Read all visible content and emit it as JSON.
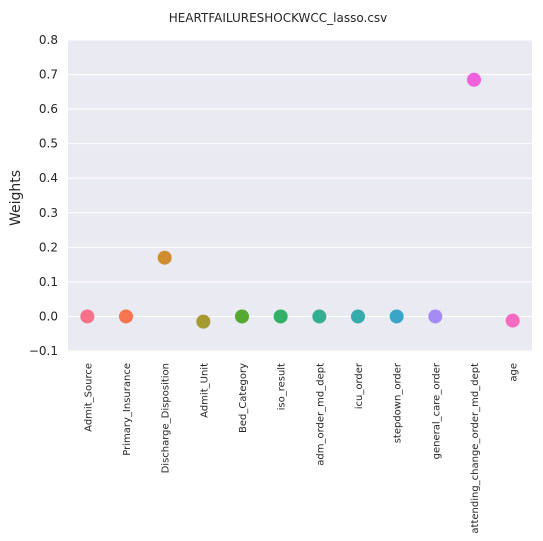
{
  "chart_data": {
    "type": "scatter",
    "title": "HEARTFAILURESHOCKWCC_lasso.csv",
    "xlabel": "",
    "ylabel": "Weights",
    "ylim": [
      -0.1,
      0.8
    ],
    "yticks": [
      -0.1,
      0.0,
      0.1,
      0.2,
      0.3,
      0.4,
      0.5,
      0.6,
      0.7,
      0.8
    ],
    "ytick_labels": [
      "−0.1",
      "0.0",
      "0.1",
      "0.2",
      "0.3",
      "0.4",
      "0.5",
      "0.6",
      "0.7",
      "0.8"
    ],
    "grid": true,
    "categories": [
      "Admit_Source",
      "Primary_Insurance",
      "Discharge_Disposition",
      "Admit_Unit",
      "Bed_Category",
      "iso_result",
      "adm_order_md_dept",
      "icu_order",
      "stepdown_order",
      "general_care_order",
      "attending_change_order_md_dept",
      "age"
    ],
    "values": [
      0.0,
      0.0,
      0.17,
      -0.015,
      0.0,
      0.0,
      0.0,
      0.0,
      0.0,
      0.0,
      0.685,
      -0.012
    ],
    "colors": [
      "#f77189",
      "#f7754f",
      "#cf8d30",
      "#a69b30",
      "#54a933",
      "#32b166",
      "#34ae91",
      "#36abab",
      "#3aa5c7",
      "#a48cf4",
      "#f061dd",
      "#f66bbf"
    ]
  }
}
